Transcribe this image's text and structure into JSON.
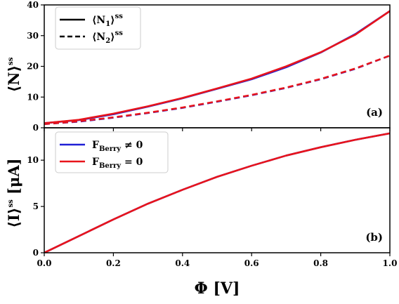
{
  "chart_data": [
    {
      "type": "line",
      "panel_label": "(a)",
      "ylabel": "⟨N⟩",
      "ylabel_sup": "ss",
      "xlim": [
        0,
        1
      ],
      "ylim": [
        0,
        40
      ],
      "yticks": [
        0,
        10,
        20,
        30,
        40
      ],
      "legend_position": "top-left",
      "legend": [
        {
          "label": "⟨N",
          "sub": "1",
          "close": "⟩",
          "sup": "ss",
          "style": "solid"
        },
        {
          "label": "⟨N",
          "sub": "2",
          "close": "⟩",
          "sup": "ss",
          "style": "dashed"
        }
      ],
      "x": [
        0.0,
        0.1,
        0.2,
        0.3,
        0.4,
        0.5,
        0.6,
        0.7,
        0.8,
        0.9,
        1.0
      ],
      "series": [
        {
          "quantity": "N1",
          "berry": "nonzero",
          "color": "#1f1fd6",
          "dash": "solid",
          "values": [
            1.5,
            2.5,
            4.4,
            6.9,
            9.6,
            12.7,
            15.8,
            19.7,
            24.5,
            30.5,
            38.0
          ]
        },
        {
          "quantity": "N1",
          "berry": "zero",
          "color": "#e8141b",
          "dash": "solid",
          "values": [
            1.5,
            2.6,
            4.6,
            7.0,
            9.7,
            12.8,
            16.0,
            20.0,
            24.6,
            30.3,
            38.0
          ]
        },
        {
          "quantity": "N2",
          "berry": "nonzero",
          "color": "#1f1fd6",
          "dash": "dashed",
          "values": [
            1.2,
            2.0,
            3.3,
            4.8,
            6.5,
            8.5,
            10.6,
            13.0,
            15.8,
            19.2,
            23.5
          ]
        },
        {
          "quantity": "N2",
          "berry": "zero",
          "color": "#e8141b",
          "dash": "dashed",
          "values": [
            1.2,
            2.1,
            3.4,
            4.9,
            6.6,
            8.6,
            10.7,
            13.1,
            15.9,
            19.3,
            23.5
          ]
        }
      ]
    },
    {
      "type": "line",
      "panel_label": "(b)",
      "ylabel": "⟨I⟩",
      "ylabel_sup": "ss",
      "ylabel_unit": "[μA]",
      "xlabel": "Φ [V]",
      "xlim": [
        0,
        1
      ],
      "ylim": [
        0,
        13.5
      ],
      "yticks": [
        0,
        5,
        10
      ],
      "xticks": [
        "0.0",
        "0.2",
        "0.4",
        "0.6",
        "0.8",
        "1.0"
      ],
      "legend_position": "top-left",
      "legend": [
        {
          "label": "F",
          "sub": "Berry",
          "rest": " ≠ 0",
          "color": "#1f1fd6"
        },
        {
          "label": "F",
          "sub": "Berry",
          "rest": " = 0",
          "color": "#e8141b"
        }
      ],
      "x": [
        0.0,
        0.1,
        0.2,
        0.3,
        0.4,
        0.5,
        0.6,
        0.7,
        0.8,
        0.9,
        1.0
      ],
      "series": [
        {
          "berry": "nonzero",
          "color": "#1f1fd6",
          "values": [
            0.0,
            1.8,
            3.6,
            5.3,
            6.8,
            8.2,
            9.4,
            10.5,
            11.4,
            12.2,
            12.9
          ]
        },
        {
          "berry": "zero",
          "color": "#e8141b",
          "values": [
            0.0,
            1.8,
            3.6,
            5.3,
            6.8,
            8.2,
            9.4,
            10.5,
            11.4,
            12.2,
            12.9
          ]
        }
      ]
    }
  ]
}
